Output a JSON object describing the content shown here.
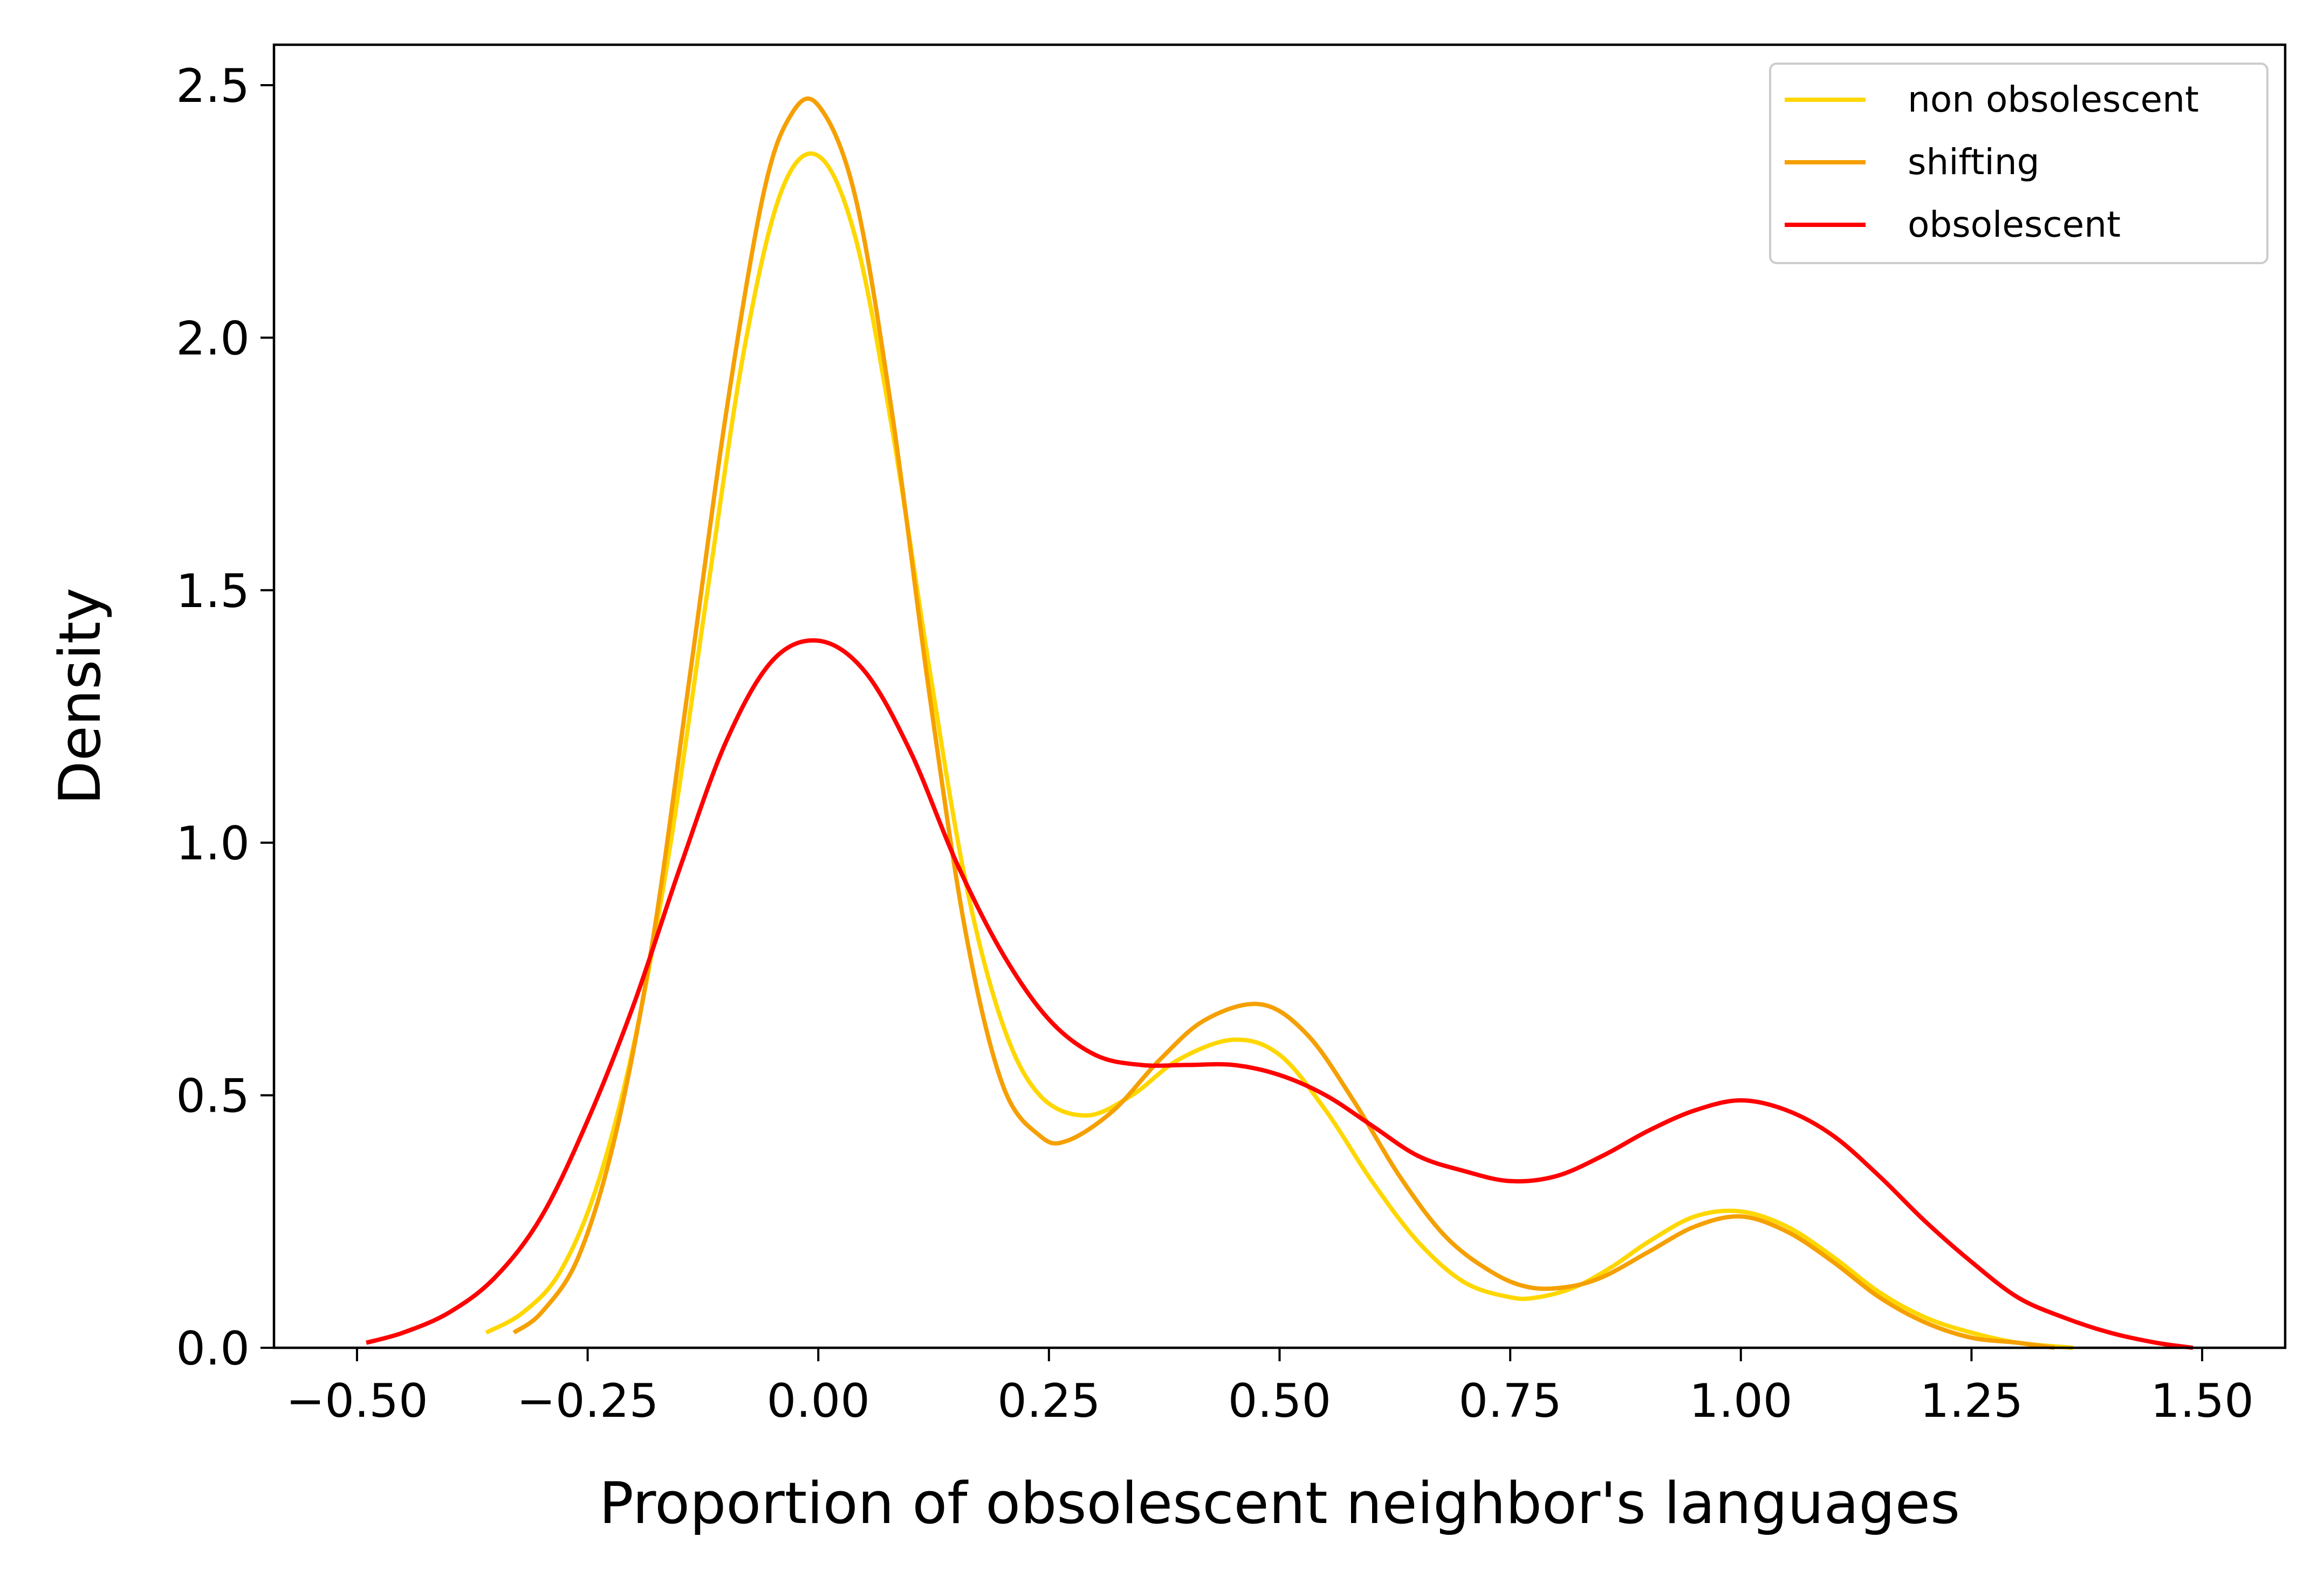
{
  "chart_data": {
    "type": "line",
    "title": "",
    "xlabel": "Proportion of obsolescent neighbor's languages",
    "ylabel": "Density",
    "xlim": [
      -0.59,
      1.59
    ],
    "ylim": [
      0,
      2.58
    ],
    "x_ticks": [
      -0.5,
      -0.25,
      0.0,
      0.25,
      0.5,
      0.75,
      1.0,
      1.25,
      1.5
    ],
    "x_tick_labels": [
      "−0.50",
      "−0.25",
      "0.00",
      "0.25",
      "0.50",
      "0.75",
      "1.00",
      "1.25",
      "1.50"
    ],
    "y_ticks": [
      0.0,
      0.5,
      1.0,
      1.5,
      2.0,
      2.5
    ],
    "y_tick_labels": [
      "0.0",
      "0.5",
      "1.0",
      "1.5",
      "2.0",
      "2.5"
    ],
    "grid": false,
    "legend_position": "top-right",
    "series": [
      {
        "name": "non obsolescent",
        "color": "#FFD700",
        "x": [
          -0.36,
          -0.32,
          -0.28,
          -0.24,
          -0.2,
          -0.16,
          -0.12,
          -0.08,
          -0.04,
          0.0,
          0.04,
          0.08,
          0.12,
          0.16,
          0.2,
          0.24,
          0.29,
          0.34,
          0.39,
          0.45,
          0.5,
          0.55,
          0.6,
          0.65,
          0.7,
          0.75,
          0.78,
          0.82,
          0.86,
          0.9,
          0.95,
          1.0,
          1.05,
          1.1,
          1.15,
          1.2,
          1.25,
          1.3,
          1.36
        ],
        "y": [
          0.03,
          0.07,
          0.15,
          0.32,
          0.6,
          1.0,
          1.5,
          1.98,
          2.29,
          2.36,
          2.2,
          1.82,
          1.35,
          0.92,
          0.64,
          0.5,
          0.46,
          0.5,
          0.57,
          0.61,
          0.58,
          0.47,
          0.33,
          0.21,
          0.13,
          0.1,
          0.1,
          0.12,
          0.16,
          0.21,
          0.26,
          0.27,
          0.24,
          0.18,
          0.11,
          0.06,
          0.03,
          0.01,
          0.0
        ]
      },
      {
        "name": "shifting",
        "color": "#F5A000",
        "x": [
          -0.33,
          -0.3,
          -0.26,
          -0.22,
          -0.18,
          -0.14,
          -0.1,
          -0.06,
          -0.03,
          0.0,
          0.04,
          0.08,
          0.12,
          0.16,
          0.2,
          0.24,
          0.27,
          0.32,
          0.37,
          0.42,
          0.48,
          0.53,
          0.58,
          0.63,
          0.68,
          0.73,
          0.77,
          0.81,
          0.85,
          0.9,
          0.95,
          1.0,
          1.05,
          1.1,
          1.15,
          1.2,
          1.25,
          1.3,
          1.34
        ],
        "y": [
          0.03,
          0.07,
          0.18,
          0.42,
          0.8,
          1.32,
          1.85,
          2.28,
          2.44,
          2.46,
          2.28,
          1.85,
          1.3,
          0.82,
          0.52,
          0.42,
          0.41,
          0.47,
          0.57,
          0.65,
          0.68,
          0.62,
          0.49,
          0.34,
          0.22,
          0.15,
          0.12,
          0.12,
          0.14,
          0.19,
          0.24,
          0.26,
          0.23,
          0.17,
          0.1,
          0.05,
          0.02,
          0.01,
          0.0
        ]
      },
      {
        "name": "obsolescent",
        "color": "#FF0000",
        "x": [
          -0.49,
          -0.45,
          -0.4,
          -0.35,
          -0.3,
          -0.25,
          -0.2,
          -0.15,
          -0.1,
          -0.05,
          0.0,
          0.05,
          0.1,
          0.15,
          0.2,
          0.25,
          0.3,
          0.35,
          0.4,
          0.45,
          0.5,
          0.55,
          0.6,
          0.65,
          0.7,
          0.75,
          0.8,
          0.85,
          0.9,
          0.95,
          1.0,
          1.05,
          1.1,
          1.15,
          1.2,
          1.25,
          1.3,
          1.35,
          1.4,
          1.45,
          1.49
        ],
        "y": [
          0.01,
          0.03,
          0.07,
          0.14,
          0.26,
          0.45,
          0.68,
          0.95,
          1.2,
          1.36,
          1.4,
          1.34,
          1.18,
          0.96,
          0.78,
          0.65,
          0.58,
          0.56,
          0.56,
          0.56,
          0.54,
          0.5,
          0.44,
          0.38,
          0.35,
          0.33,
          0.34,
          0.38,
          0.43,
          0.47,
          0.49,
          0.47,
          0.42,
          0.34,
          0.25,
          0.17,
          0.1,
          0.06,
          0.03,
          0.01,
          0.0
        ]
      }
    ]
  }
}
